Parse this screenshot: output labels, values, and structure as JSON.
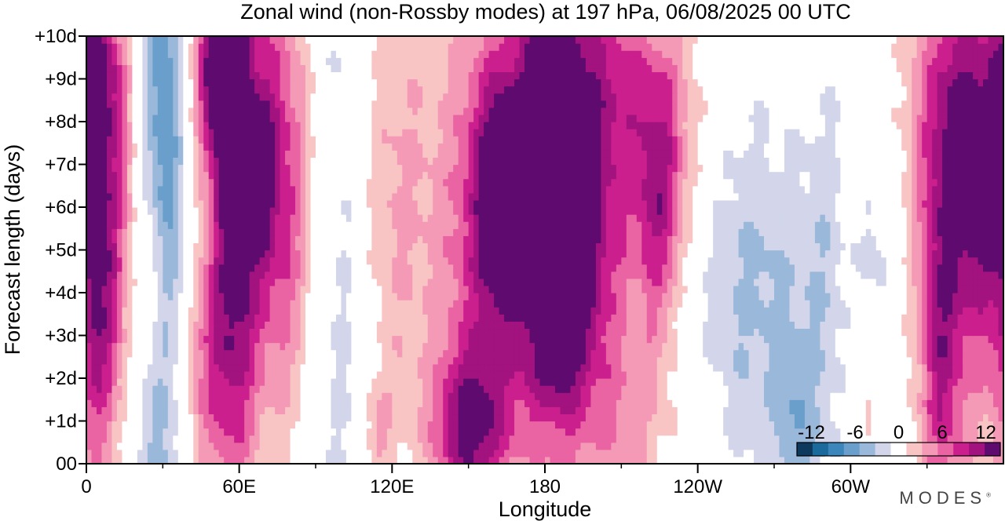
{
  "chart_data": {
    "type": "heatmap",
    "title": "Zonal wind (non-Rossby modes) at 197 hPa,  06/08/2025  00 UTC",
    "xlabel": "Longitude",
    "ylabel": "Forecast length (days)",
    "x_ticks": [
      {
        "lon": 0,
        "label": "0"
      },
      {
        "lon": 60,
        "label": "60E"
      },
      {
        "lon": 120,
        "label": "120E"
      },
      {
        "lon": 180,
        "label": "180"
      },
      {
        "lon": 240,
        "label": "120W"
      },
      {
        "lon": 300,
        "label": "60W"
      }
    ],
    "x_minor_ticks": [
      30,
      90,
      150,
      210,
      270,
      330
    ],
    "xlim": [
      0,
      360
    ],
    "y_ticks": [
      {
        "day": 0,
        "label": "00"
      },
      {
        "day": 1,
        "label": "+1d"
      },
      {
        "day": 2,
        "label": "+2d"
      },
      {
        "day": 3,
        "label": "+3d"
      },
      {
        "day": 4,
        "label": "+4d"
      },
      {
        "day": 5,
        "label": "+5d"
      },
      {
        "day": 6,
        "label": "+6d"
      },
      {
        "day": 7,
        "label": "+7d"
      },
      {
        "day": 8,
        "label": "+8d"
      },
      {
        "day": 9,
        "label": "+9d"
      },
      {
        "day": 10,
        "label": "+10d"
      }
    ],
    "ylim": [
      0,
      10
    ],
    "levels": [
      -14,
      -12,
      -10,
      -8,
      -6,
      -4,
      -2,
      2,
      4,
      6,
      8,
      10,
      12,
      14
    ],
    "colors": [
      "#0d3a5c",
      "#1b6a9c",
      "#3b86bb",
      "#6a9fcc",
      "#9ab8da",
      "#d3d6ea",
      "#ffffff",
      "#f8c4c4",
      "#f59ab6",
      "#ea64a4",
      "#cc1f8e",
      "#a3137f",
      "#5e0a6e"
    ],
    "colorbar": {
      "tick_labels": [
        {
          "value": -12,
          "label": "-12"
        },
        {
          "value": -6,
          "label": "-6"
        },
        {
          "value": 0,
          "label": "0"
        },
        {
          "value": 6,
          "label": "6"
        },
        {
          "value": 12,
          "label": "12"
        }
      ],
      "range": [
        -14,
        14
      ],
      "position": "bottom-right"
    },
    "features": [
      {
        "lon": 8,
        "day": 6.8,
        "amp": 8.5,
        "wlon": 9,
        "wday": 3.2
      },
      {
        "lon": 5,
        "day": 2.5,
        "amp": 6,
        "wlon": 6,
        "wday": 2.5
      },
      {
        "lon": 4,
        "day": 9.2,
        "amp": 6.5,
        "wlon": 6,
        "wday": 1.2
      },
      {
        "lon": 52,
        "day": 9.3,
        "amp": 11.5,
        "wlon": 7,
        "wday": 1.5
      },
      {
        "lon": 58,
        "day": 4.5,
        "amp": 8.5,
        "wlon": 7,
        "wday": 4.5
      },
      {
        "lon": 65,
        "day": 7,
        "amp": 7.5,
        "wlon": 12,
        "wday": 3.5
      },
      {
        "lon": 70,
        "day": 6.8,
        "amp": 3.5,
        "wlon": 3,
        "wday": 1.3
      },
      {
        "lon": 45,
        "day": 2,
        "amp": 5,
        "wlon": 8,
        "wday": 2
      },
      {
        "lon": 30,
        "day": 7,
        "amp": -8,
        "wlon": 7,
        "wday": 8
      },
      {
        "lon": 27,
        "day": 4,
        "amp": 4.5,
        "wlon": 4,
        "wday": 1.5
      },
      {
        "lon": 78,
        "day": 6,
        "amp": 5,
        "wlon": 7,
        "wday": 4
      },
      {
        "lon": 103,
        "day": 6,
        "amp": -5,
        "wlon": 9,
        "wday": 8
      },
      {
        "lon": 115,
        "day": 6.5,
        "amp": 5,
        "wlon": 14,
        "wday": 5
      },
      {
        "lon": 114,
        "day": 0.8,
        "amp": 4,
        "wlon": 4,
        "wday": 0.8
      },
      {
        "lon": 150,
        "day": 0.8,
        "amp": 9.5,
        "wlon": 10,
        "wday": 1.3
      },
      {
        "lon": 155,
        "day": 5,
        "amp": 6,
        "wlon": 14,
        "wday": 4
      },
      {
        "lon": 162,
        "day": 6.5,
        "amp": 7.5,
        "wlon": 7,
        "wday": 2
      },
      {
        "lon": 182,
        "day": 8.5,
        "amp": 8.5,
        "wlon": 9,
        "wday": 2.5
      },
      {
        "lon": 185,
        "day": 9.2,
        "amp": 4.5,
        "wlon": 4,
        "wday": 0.9
      },
      {
        "lon": 185,
        "day": 3.5,
        "amp": 8.5,
        "wlon": 10,
        "wday": 2
      },
      {
        "lon": 187,
        "day": 3.3,
        "amp": 3.5,
        "wlon": 4,
        "wday": 0.8
      },
      {
        "lon": 195,
        "day": 5,
        "amp": 3.5,
        "wlon": 8,
        "wday": 1.5
      },
      {
        "lon": 180,
        "day": 6,
        "amp": 5.5,
        "wlon": 20,
        "wday": 5
      },
      {
        "lon": 200,
        "day": 8.5,
        "amp": 4.5,
        "wlon": 14,
        "wday": 2
      },
      {
        "lon": 225,
        "day": 6,
        "amp": 6.5,
        "wlon": 6,
        "wday": 2
      },
      {
        "lon": 210,
        "day": 7,
        "amp": 4,
        "wlon": 18,
        "wday": 5
      },
      {
        "lon": 230,
        "day": 8,
        "amp": 3,
        "wlon": 10,
        "wday": 2
      },
      {
        "lon": 210,
        "day": 1,
        "amp": 2.5,
        "wlon": 15,
        "wday": 1.5
      },
      {
        "lon": 262,
        "day": 4,
        "amp": -4.5,
        "wlon": 18,
        "wday": 3
      },
      {
        "lon": 290,
        "day": 4.5,
        "amp": -2.5,
        "wlon": 6,
        "wday": 4
      },
      {
        "lon": 278,
        "day": 1,
        "amp": -4,
        "wlon": 6,
        "wday": 1.5
      },
      {
        "lon": 340,
        "day": 8.5,
        "amp": 8,
        "wlon": 12,
        "wday": 2.5
      },
      {
        "lon": 352,
        "day": 6.5,
        "amp": 5.5,
        "wlon": 8,
        "wday": 2.5
      },
      {
        "lon": 335,
        "day": 2.5,
        "amp": 7.5,
        "wlon": 6,
        "wday": 3
      },
      {
        "lon": 345,
        "day": 4.5,
        "amp": 5,
        "wlon": 12,
        "wday": 4
      },
      {
        "lon": 310,
        "day": 5,
        "amp": -3,
        "wlon": 5,
        "wday": 1
      },
      {
        "lon": 308,
        "day": 1.3,
        "amp": 2.5,
        "wlon": 3,
        "wday": 0.6
      }
    ]
  },
  "brand": {
    "name": "MODES",
    "mark": "®"
  }
}
